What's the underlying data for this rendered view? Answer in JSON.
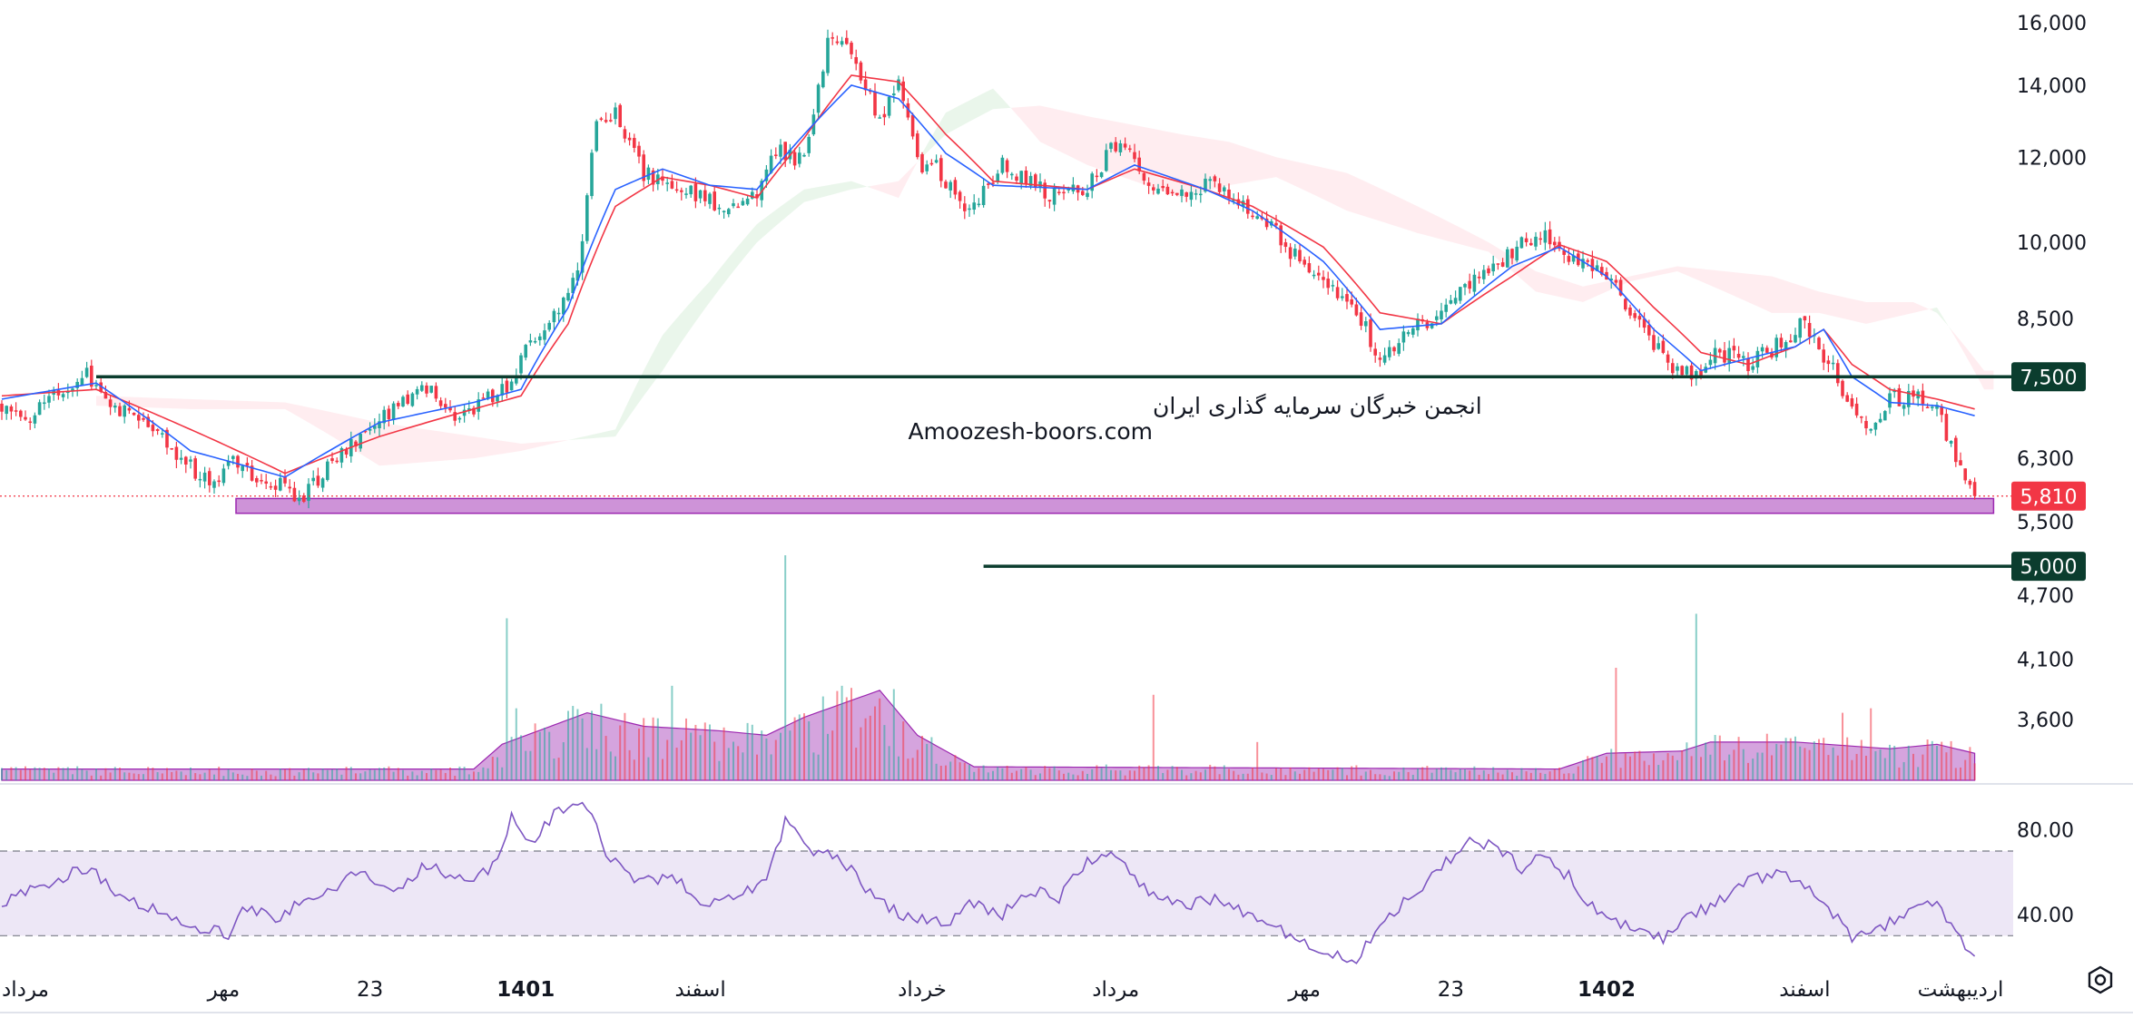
{
  "chart_data": {
    "type": "candlestick",
    "x_axis_labels": [
      {
        "label": "مرداد",
        "index": 5,
        "bold": false
      },
      {
        "label": "مهر",
        "index": 47,
        "bold": false
      },
      {
        "label": "23",
        "index": 78,
        "bold": false
      },
      {
        "label": "1401",
        "index": 111,
        "bold": true
      },
      {
        "label": "اسفند",
        "index": 148,
        "bold": false
      },
      {
        "label": "خرداد",
        "index": 195,
        "bold": false
      },
      {
        "label": "مرداد",
        "index": 236,
        "bold": false
      },
      {
        "label": "مهر",
        "index": 276,
        "bold": false
      },
      {
        "label": "23",
        "index": 307,
        "bold": false
      },
      {
        "label": "1402",
        "index": 340,
        "bold": true
      },
      {
        "label": "اسفند",
        "index": 382,
        "bold": false
      },
      {
        "label": "اردیبهشت",
        "index": 415,
        "bold": false
      }
    ],
    "price_axis_ticks": [
      16000,
      14000,
      12000,
      10000,
      8500,
      7500,
      6300,
      5500,
      4700,
      4100,
      3600
    ],
    "price_axis_tick_labels": [
      "16,000",
      "14,000",
      "12,000",
      "10,000",
      "8,500",
      "7,500",
      "6,300",
      "5,500",
      "4,700",
      "4,100",
      "3,600"
    ],
    "price_scale": "log",
    "price_range": [
      3150,
      16800
    ],
    "close_anchors": [
      [
        0,
        7100
      ],
      [
        6,
        6900
      ],
      [
        12,
        7200
      ],
      [
        18,
        7520
      ],
      [
        24,
        7050
      ],
      [
        30,
        6900
      ],
      [
        38,
        6300
      ],
      [
        44,
        6000
      ],
      [
        50,
        6250
      ],
      [
        56,
        6000
      ],
      [
        64,
        5810
      ],
      [
        70,
        6300
      ],
      [
        78,
        6700
      ],
      [
        84,
        7000
      ],
      [
        90,
        7300
      ],
      [
        96,
        6900
      ],
      [
        104,
        7200
      ],
      [
        108,
        7300
      ],
      [
        112,
        8100
      ],
      [
        118,
        8600
      ],
      [
        122,
        9300
      ],
      [
        126,
        12800
      ],
      [
        130,
        13100
      ],
      [
        136,
        11600
      ],
      [
        142,
        11300
      ],
      [
        148,
        11000
      ],
      [
        154,
        10700
      ],
      [
        160,
        11200
      ],
      [
        164,
        12200
      ],
      [
        170,
        11900
      ],
      [
        175,
        15400
      ],
      [
        180,
        15200
      ],
      [
        183,
        14000
      ],
      [
        186,
        12900
      ],
      [
        190,
        14100
      ],
      [
        194,
        11800
      ],
      [
        198,
        11700
      ],
      [
        202,
        11000
      ],
      [
        206,
        10800
      ],
      [
        212,
        11800
      ],
      [
        218,
        11400
      ],
      [
        224,
        11000
      ],
      [
        230,
        11300
      ],
      [
        236,
        12400
      ],
      [
        242,
        11600
      ],
      [
        248,
        11000
      ],
      [
        256,
        11400
      ],
      [
        262,
        10900
      ],
      [
        268,
        10500
      ],
      [
        274,
        9700
      ],
      [
        280,
        9100
      ],
      [
        286,
        8800
      ],
      [
        292,
        7800
      ],
      [
        298,
        8300
      ],
      [
        304,
        8500
      ],
      [
        310,
        9100
      ],
      [
        316,
        9500
      ],
      [
        322,
        10000
      ],
      [
        328,
        10100
      ],
      [
        334,
        9600
      ],
      [
        340,
        9300
      ],
      [
        346,
        8500
      ],
      [
        352,
        7800
      ],
      [
        358,
        7500
      ],
      [
        364,
        7900
      ],
      [
        370,
        7700
      ],
      [
        376,
        8000
      ],
      [
        382,
        8400
      ],
      [
        388,
        7600
      ],
      [
        392,
        7000
      ],
      [
        396,
        6700
      ],
      [
        400,
        7200
      ],
      [
        406,
        7150
      ],
      [
        410,
        7000
      ],
      [
        414,
        6300
      ],
      [
        418,
        5810
      ]
    ],
    "tenkan_anchors": [
      [
        0,
        7150
      ],
      [
        20,
        7400
      ],
      [
        40,
        6400
      ],
      [
        60,
        6050
      ],
      [
        80,
        6800
      ],
      [
        100,
        7100
      ],
      [
        110,
        7300
      ],
      [
        120,
        8700
      ],
      [
        130,
        11200
      ],
      [
        140,
        11700
      ],
      [
        150,
        11300
      ],
      [
        160,
        11200
      ],
      [
        170,
        12600
      ],
      [
        180,
        14000
      ],
      [
        190,
        13600
      ],
      [
        200,
        12100
      ],
      [
        210,
        11300
      ],
      [
        230,
        11200
      ],
      [
        240,
        11800
      ],
      [
        255,
        11200
      ],
      [
        265,
        10700
      ],
      [
        280,
        9600
      ],
      [
        292,
        8300
      ],
      [
        305,
        8400
      ],
      [
        320,
        9500
      ],
      [
        330,
        9900
      ],
      [
        340,
        9300
      ],
      [
        350,
        8300
      ],
      [
        360,
        7600
      ],
      [
        370,
        7800
      ],
      [
        380,
        8000
      ],
      [
        386,
        8300
      ],
      [
        392,
        7500
      ],
      [
        400,
        7100
      ],
      [
        410,
        7050
      ],
      [
        418,
        6900
      ]
    ],
    "kijun_anchors": [
      [
        0,
        7200
      ],
      [
        20,
        7300
      ],
      [
        40,
        6700
      ],
      [
        60,
        6100
      ],
      [
        80,
        6600
      ],
      [
        100,
        7000
      ],
      [
        110,
        7200
      ],
      [
        120,
        8400
      ],
      [
        130,
        10800
      ],
      [
        140,
        11500
      ],
      [
        150,
        11300
      ],
      [
        160,
        11000
      ],
      [
        170,
        12500
      ],
      [
        180,
        14300
      ],
      [
        190,
        14100
      ],
      [
        200,
        12600
      ],
      [
        210,
        11400
      ],
      [
        230,
        11200
      ],
      [
        240,
        11700
      ],
      [
        255,
        11200
      ],
      [
        265,
        10800
      ],
      [
        280,
        9900
      ],
      [
        292,
        8600
      ],
      [
        305,
        8400
      ],
      [
        320,
        9300
      ],
      [
        330,
        9950
      ],
      [
        340,
        9600
      ],
      [
        350,
        8700
      ],
      [
        360,
        7900
      ],
      [
        370,
        7700
      ],
      [
        380,
        8000
      ],
      [
        386,
        8300
      ],
      [
        392,
        7700
      ],
      [
        400,
        7300
      ],
      [
        410,
        7150
      ],
      [
        418,
        7000
      ]
    ],
    "span_a_anchors": [
      [
        20,
        7050
      ],
      [
        40,
        7000
      ],
      [
        60,
        7000
      ],
      [
        80,
        6200
      ],
      [
        100,
        6300
      ],
      [
        110,
        6400
      ],
      [
        130,
        6700
      ],
      [
        140,
        8200
      ],
      [
        150,
        9200
      ],
      [
        160,
        10400
      ],
      [
        170,
        11200
      ],
      [
        180,
        11400
      ],
      [
        190,
        11000
      ],
      [
        200,
        13200
      ],
      [
        210,
        13900
      ],
      [
        220,
        12400
      ],
      [
        230,
        11800
      ],
      [
        250,
        11000
      ],
      [
        260,
        11300
      ],
      [
        270,
        11500
      ],
      [
        285,
        10700
      ],
      [
        300,
        10200
      ],
      [
        315,
        9800
      ],
      [
        325,
        9000
      ],
      [
        335,
        8800
      ],
      [
        345,
        9200
      ],
      [
        355,
        9400
      ],
      [
        365,
        9000
      ],
      [
        375,
        8600
      ],
      [
        385,
        8600
      ],
      [
        395,
        8400
      ],
      [
        405,
        8600
      ],
      [
        410,
        8700
      ],
      [
        420,
        7300
      ]
    ],
    "span_b_anchors": [
      [
        20,
        7200
      ],
      [
        40,
        7150
      ],
      [
        60,
        7100
      ],
      [
        80,
        6800
      ],
      [
        100,
        6600
      ],
      [
        110,
        6500
      ],
      [
        130,
        6600
      ],
      [
        140,
        7600
      ],
      [
        150,
        8800
      ],
      [
        160,
        10000
      ],
      [
        170,
        10900
      ],
      [
        180,
        11200
      ],
      [
        190,
        11400
      ],
      [
        200,
        12600
      ],
      [
        210,
        13300
      ],
      [
        220,
        13400
      ],
      [
        230,
        13100
      ],
      [
        250,
        12600
      ],
      [
        260,
        12400
      ],
      [
        270,
        12000
      ],
      [
        285,
        11600
      ],
      [
        300,
        10800
      ],
      [
        315,
        10000
      ],
      [
        325,
        9400
      ],
      [
        335,
        9100
      ],
      [
        345,
        9300
      ],
      [
        355,
        9500
      ],
      [
        365,
        9400
      ],
      [
        375,
        9300
      ],
      [
        385,
        9000
      ],
      [
        395,
        8800
      ],
      [
        405,
        8800
      ],
      [
        410,
        8600
      ],
      [
        420,
        7600
      ]
    ],
    "last_candle_index": 418,
    "cloud_end_index": 422,
    "horizontal_levels": [
      {
        "value": 7500,
        "label": "7,500",
        "start_index": 20,
        "color": "#0b3d2e"
      },
      {
        "value": 5000,
        "label": "5,000",
        "start_index": 208,
        "color": "#0b3d2e"
      }
    ],
    "current_price": {
      "value": 5810,
      "label": "5,810",
      "color": "#f23645"
    },
    "support_zone": {
      "low": 5600,
      "high": 5780,
      "start_index": 50,
      "end_index": 422,
      "color": "#ce93d8"
    },
    "watermark": {
      "line1": "انجمن خبرگان سرمایه گذاری ایران",
      "line2": "Amoozesh-boors.com"
    },
    "volume": {
      "base_ratio": 0.05,
      "avg_anchors": [
        [
          0,
          0.05
        ],
        [
          100,
          0.05
        ],
        [
          106,
          0.16
        ],
        [
          124,
          0.3
        ],
        [
          136,
          0.24
        ],
        [
          152,
          0.22
        ],
        [
          162,
          0.2
        ],
        [
          170,
          0.28
        ],
        [
          186,
          0.4
        ],
        [
          194,
          0.2
        ],
        [
          206,
          0.06
        ],
        [
          330,
          0.05
        ],
        [
          340,
          0.12
        ],
        [
          356,
          0.13
        ],
        [
          362,
          0.17
        ],
        [
          380,
          0.17
        ],
        [
          400,
          0.14
        ],
        [
          410,
          0.16
        ],
        [
          418,
          0.12
        ]
      ],
      "spikes": [
        {
          "index": 107,
          "ratio": 0.72,
          "dir": "up"
        },
        {
          "index": 109,
          "ratio": 0.32,
          "dir": "up"
        },
        {
          "index": 142,
          "ratio": 0.42,
          "dir": "up"
        },
        {
          "index": 166,
          "ratio": 1.0,
          "dir": "up"
        },
        {
          "index": 168,
          "ratio": 0.28,
          "dir": "down"
        },
        {
          "index": 178,
          "ratio": 0.42,
          "dir": "up"
        },
        {
          "index": 244,
          "ratio": 0.38,
          "dir": "down"
        },
        {
          "index": 266,
          "ratio": 0.17,
          "dir": "down"
        },
        {
          "index": 342,
          "ratio": 0.5,
          "dir": "down"
        },
        {
          "index": 359,
          "ratio": 0.74,
          "dir": "up"
        },
        {
          "index": 390,
          "ratio": 0.3,
          "dir": "down"
        },
        {
          "index": 396,
          "ratio": 0.32,
          "dir": "down"
        }
      ]
    },
    "rsi": {
      "ticks": [
        80,
        40
      ],
      "tick_labels": [
        "80.00",
        "40.00"
      ],
      "overbought": 70,
      "oversold": 30,
      "range": [
        10,
        100
      ],
      "line_color": "#7e57c2",
      "band_color": "#ede7f6",
      "anchors": [
        [
          0,
          45
        ],
        [
          10,
          55
        ],
        [
          18,
          62
        ],
        [
          26,
          48
        ],
        [
          34,
          42
        ],
        [
          42,
          34
        ],
        [
          48,
          30
        ],
        [
          52,
          44
        ],
        [
          58,
          38
        ],
        [
          64,
          46
        ],
        [
          70,
          52
        ],
        [
          76,
          60
        ],
        [
          82,
          50
        ],
        [
          90,
          64
        ],
        [
          96,
          55
        ],
        [
          104,
          62
        ],
        [
          108,
          85
        ],
        [
          112,
          72
        ],
        [
          118,
          90
        ],
        [
          124,
          92
        ],
        [
          128,
          68
        ],
        [
          134,
          55
        ],
        [
          142,
          58
        ],
        [
          150,
          44
        ],
        [
          156,
          48
        ],
        [
          162,
          58
        ],
        [
          166,
          84
        ],
        [
          172,
          70
        ],
        [
          178,
          66
        ],
        [
          184,
          50
        ],
        [
          192,
          38
        ],
        [
          200,
          36
        ],
        [
          206,
          46
        ],
        [
          212,
          40
        ],
        [
          218,
          52
        ],
        [
          224,
          48
        ],
        [
          230,
          66
        ],
        [
          236,
          70
        ],
        [
          242,
          52
        ],
        [
          250,
          44
        ],
        [
          258,
          48
        ],
        [
          264,
          40
        ],
        [
          270,
          34
        ],
        [
          276,
          26
        ],
        [
          282,
          22
        ],
        [
          286,
          16
        ],
        [
          292,
          34
        ],
        [
          298,
          48
        ],
        [
          304,
          60
        ],
        [
          310,
          74
        ],
        [
          316,
          72
        ],
        [
          322,
          62
        ],
        [
          326,
          68
        ],
        [
          332,
          58
        ],
        [
          338,
          40
        ],
        [
          346,
          34
        ],
        [
          352,
          28
        ],
        [
          358,
          40
        ],
        [
          364,
          46
        ],
        [
          370,
          56
        ],
        [
          376,
          60
        ],
        [
          382,
          54
        ],
        [
          388,
          40
        ],
        [
          392,
          30
        ],
        [
          398,
          34
        ],
        [
          404,
          42
        ],
        [
          410,
          44
        ],
        [
          414,
          30
        ],
        [
          418,
          20
        ]
      ]
    }
  },
  "colors": {
    "up": "#26a69a",
    "down": "#f23645",
    "tenkan": "#2962ff",
    "kijun": "#f23645",
    "cloud_up": "#e8f5e9",
    "cloud_down": "#ffebee",
    "volume_area": "#9c27b0"
  },
  "ui": {
    "settings_icon": "gear-icon"
  }
}
